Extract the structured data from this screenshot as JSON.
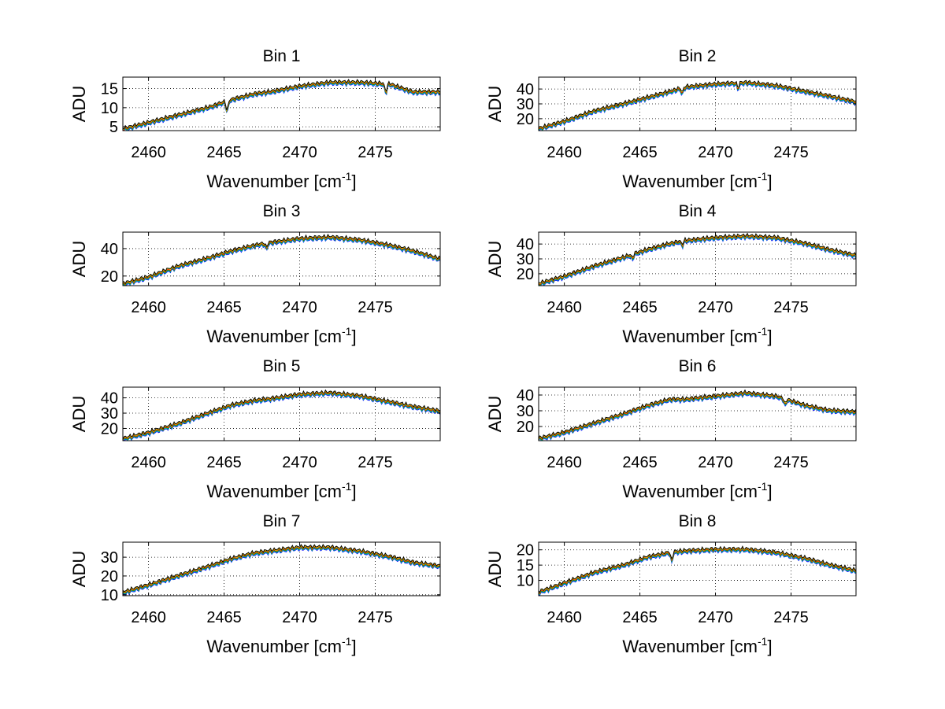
{
  "figure": {
    "background": "#ffffff"
  },
  "chart_data": [
    {
      "type": "line",
      "title": "Bin 1",
      "xlabel": "Wavenumber [cm",
      "xlabel_sup": "-1",
      "xlabel_end": "]",
      "ylabel": "ADU",
      "xlim": [
        2458.3,
        2479.3
      ],
      "ylim": [
        4,
        18
      ],
      "xticks": [
        2460,
        2465,
        2470,
        2475
      ],
      "yticks": [
        5,
        10,
        15
      ],
      "grid": true,
      "x": [
        2458.3,
        2460,
        2462,
        2464,
        2465.5,
        2467,
        2468,
        2470,
        2472,
        2474,
        2476,
        2477.5,
        2479.3
      ],
      "y": [
        4.3,
        6,
        8,
        10,
        12,
        13.5,
        14,
        15.5,
        16.5,
        16.5,
        16,
        14,
        14
      ],
      "dips": [
        [
          2465.2,
          -3
        ],
        [
          2475.7,
          -2.5
        ]
      ],
      "series_colors": [
        "#0000ff",
        "#00bfbf",
        "#00a000",
        "#ff0000",
        "#d0d000",
        "#000000"
      ]
    },
    {
      "type": "line",
      "title": "Bin 2",
      "xlabel": "Wavenumber [cm",
      "xlabel_sup": "-1",
      "xlabel_end": "]",
      "ylabel": "ADU",
      "xlim": [
        2458.3,
        2479.3
      ],
      "ylim": [
        12,
        48
      ],
      "xticks": [
        2460,
        2465,
        2470,
        2475
      ],
      "yticks": [
        20,
        30,
        40
      ],
      "grid": true,
      "x": [
        2458.3,
        2460,
        2462,
        2464,
        2465.5,
        2467,
        2468,
        2470,
        2472,
        2474,
        2476,
        2477.5,
        2479.3
      ],
      "y": [
        13,
        18,
        25,
        30,
        34,
        38,
        41,
        43,
        44,
        42,
        38,
        35,
        31
      ],
      "dips": [
        [
          2467.8,
          -4
        ],
        [
          2471.5,
          -4
        ]
      ],
      "series_colors": [
        "#0000ff",
        "#00bfbf",
        "#00a000",
        "#ff0000",
        "#d0d000",
        "#000000"
      ]
    },
    {
      "type": "line",
      "title": "Bin 3",
      "xlabel": "Wavenumber [cm",
      "xlabel_sup": "-1",
      "xlabel_end": "]",
      "ylabel": "ADU",
      "xlim": [
        2458.3,
        2479.3
      ],
      "ylim": [
        13,
        52
      ],
      "xticks": [
        2460,
        2465,
        2470,
        2475
      ],
      "yticks": [
        20,
        40
      ],
      "grid": true,
      "x": [
        2458.3,
        2460,
        2462,
        2464,
        2465.5,
        2467,
        2468,
        2470,
        2472,
        2474,
        2476,
        2477.5,
        2479.3
      ],
      "y": [
        14,
        19,
        27,
        33,
        38,
        42,
        44,
        47,
        48,
        46,
        42,
        38,
        32
      ],
      "dips": [
        [
          2467.8,
          -4
        ]
      ],
      "series_colors": [
        "#0000ff",
        "#00bfbf",
        "#00a000",
        "#ff0000",
        "#d0d000",
        "#000000"
      ]
    },
    {
      "type": "line",
      "title": "Bin 4",
      "xlabel": "Wavenumber [cm",
      "xlabel_sup": "-1",
      "xlabel_end": "]",
      "ylabel": "ADU",
      "xlim": [
        2458.3,
        2479.3
      ],
      "ylim": [
        12,
        48
      ],
      "xticks": [
        2460,
        2465,
        2470,
        2475
      ],
      "yticks": [
        20,
        30,
        40
      ],
      "grid": true,
      "x": [
        2458.3,
        2460,
        2462,
        2464,
        2465.5,
        2467,
        2468,
        2470,
        2472,
        2474,
        2476,
        2477.5,
        2479.3
      ],
      "y": [
        13,
        18,
        25,
        31,
        36,
        40,
        42,
        44,
        45,
        44,
        40,
        36,
        32
      ],
      "dips": [
        [
          2464.5,
          -3
        ],
        [
          2467.8,
          -3
        ]
      ],
      "series_colors": [
        "#0000ff",
        "#00bfbf",
        "#00a000",
        "#ff0000",
        "#d0d000",
        "#000000"
      ]
    },
    {
      "type": "line",
      "title": "Bin 5",
      "xlabel": "Wavenumber [cm",
      "xlabel_sup": "-1",
      "xlabel_end": "]",
      "ylabel": "ADU",
      "xlim": [
        2458.3,
        2479.3
      ],
      "ylim": [
        12,
        47
      ],
      "xticks": [
        2460,
        2465,
        2470,
        2475
      ],
      "yticks": [
        20,
        30,
        40
      ],
      "grid": true,
      "x": [
        2458.3,
        2460,
        2462,
        2464,
        2465.5,
        2467,
        2468,
        2470,
        2472,
        2474,
        2476,
        2477.5,
        2479.3
      ],
      "y": [
        13,
        17,
        23,
        30,
        35,
        38,
        39,
        42,
        43,
        41,
        37,
        34,
        31
      ],
      "dips": [],
      "series_colors": [
        "#0000ff",
        "#00bfbf",
        "#00a000",
        "#ff0000",
        "#d0d000",
        "#000000"
      ]
    },
    {
      "type": "line",
      "title": "Bin 6",
      "xlabel": "Wavenumber [cm",
      "xlabel_sup": "-1",
      "xlabel_end": "]",
      "ylabel": "ADU",
      "xlim": [
        2458.3,
        2479.3
      ],
      "ylim": [
        11,
        45
      ],
      "xticks": [
        2460,
        2465,
        2470,
        2475
      ],
      "yticks": [
        20,
        30,
        40
      ],
      "grid": true,
      "x": [
        2458.3,
        2460,
        2462,
        2464,
        2465.5,
        2467,
        2468,
        2470,
        2472,
        2474,
        2476,
        2477.5,
        2479.3
      ],
      "y": [
        12,
        16,
        22,
        28,
        33,
        37,
        37,
        39,
        41,
        39,
        33,
        30,
        29
      ],
      "dips": [
        [
          2474.6,
          -4
        ]
      ],
      "series_colors": [
        "#0000ff",
        "#00bfbf",
        "#00a000",
        "#ff0000",
        "#d0d000",
        "#000000"
      ]
    },
    {
      "type": "line",
      "title": "Bin 7",
      "xlabel": "Wavenumber [cm",
      "xlabel_sup": "-1",
      "xlabel_end": "]",
      "ylabel": "ADU",
      "xlim": [
        2458.3,
        2479.3
      ],
      "ylim": [
        9.5,
        38
      ],
      "xticks": [
        2460,
        2465,
        2470,
        2475
      ],
      "yticks": [
        10,
        20,
        30
      ],
      "grid": true,
      "x": [
        2458.3,
        2460,
        2462,
        2464,
        2465.5,
        2467,
        2468,
        2470,
        2472,
        2474,
        2476,
        2477.5,
        2479.3
      ],
      "y": [
        11,
        15,
        20,
        25,
        29,
        32,
        33,
        35,
        35,
        33,
        30,
        27,
        25
      ],
      "dips": [],
      "series_colors": [
        "#0000ff",
        "#00bfbf",
        "#00a000",
        "#ff0000",
        "#d0d000",
        "#000000"
      ]
    },
    {
      "type": "line",
      "title": "Bin 8",
      "xlabel": "Wavenumber [cm",
      "xlabel_sup": "-1",
      "xlabel_end": "]",
      "ylabel": "ADU",
      "xlim": [
        2458.3,
        2479.3
      ],
      "ylim": [
        5,
        22.5
      ],
      "xticks": [
        2460,
        2465,
        2470,
        2475
      ],
      "yticks": [
        10,
        15,
        20
      ],
      "grid": true,
      "x": [
        2458.3,
        2460,
        2462,
        2464,
        2465.5,
        2467,
        2468,
        2470,
        2472,
        2474,
        2476,
        2477.5,
        2479.3
      ],
      "y": [
        6,
        9,
        12.5,
        15,
        17.5,
        19,
        19.5,
        20,
        20,
        19,
        17,
        15,
        13
      ],
      "dips": [
        [
          2467.1,
          -3
        ]
      ],
      "series_colors": [
        "#0000ff",
        "#00bfbf",
        "#00a000",
        "#ff0000",
        "#d0d000",
        "#000000"
      ]
    }
  ]
}
